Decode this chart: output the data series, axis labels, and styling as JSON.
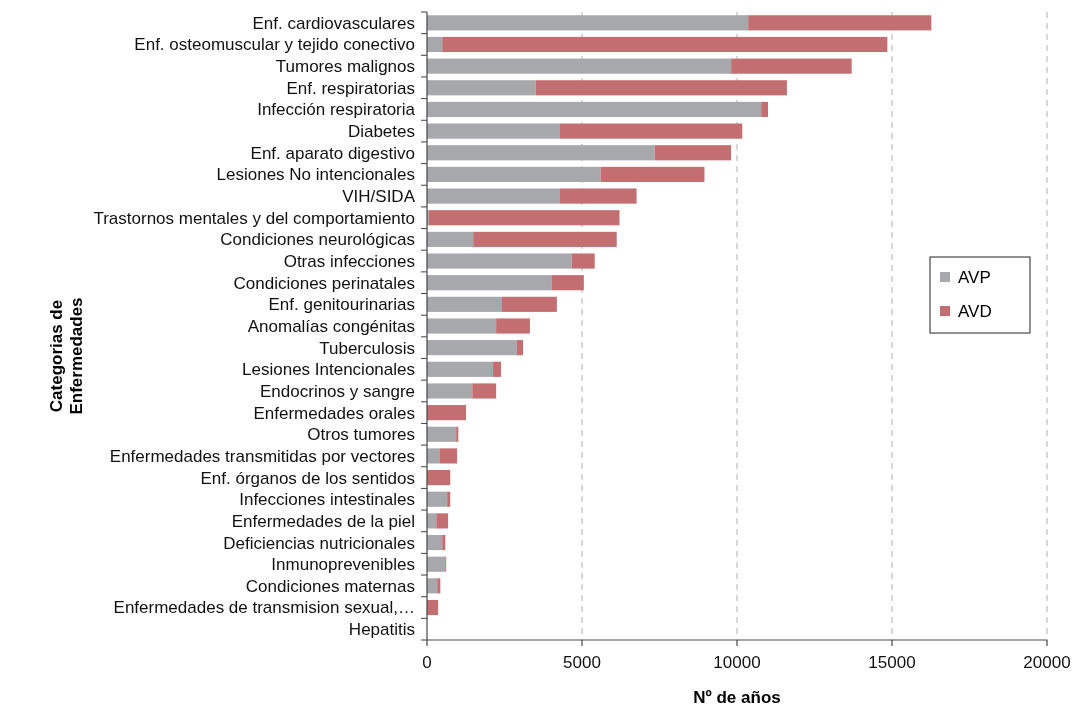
{
  "chart_data": {
    "type": "bar",
    "orientation": "horizontal",
    "stacked": true,
    "xlabel": "Nº de años",
    "ylabel": "Categorias de Enfermedades",
    "categories": [
      "Enf. cardiovasculares",
      "Enf. osteomuscular y tejido conectivo",
      "Tumores malignos",
      "Enf. respiratorias",
      "Infección respiratoria",
      "Diabetes",
      "Enf. aparato digestivo",
      "Lesiones No intencionales",
      "VIH/SIDA",
      "Trastornos mentales y del comportamiento",
      "Condiciones neurológicas",
      "Otras infecciones",
      "Condiciones perinatales",
      "Enf. genitourinarias",
      "Anomalías congénitas",
      "Tuberculosis",
      "Lesiones Intencionales",
      "Endocrinos y sangre",
      "Enfermedades orales",
      "Otros tumores",
      "Enfermedades transmitidas por vectores",
      "Enf. órganos de los sentidos",
      "Infecciones intestinales",
      "Enfermedades de la piel",
      "Deficiencias nutricionales",
      "Inmunoprevenibles",
      "Condiciones maternas",
      "Enfermedades de transmision sexual,…",
      "Hepatitis"
    ],
    "series": [
      {
        "name": "AVP",
        "color": "#a7a8ac",
        "values": [
          10360,
          490,
          9810,
          3510,
          10780,
          4290,
          7340,
          5600,
          4290,
          60,
          1490,
          4670,
          4030,
          2420,
          2230,
          2900,
          2130,
          1460,
          0,
          940,
          400,
          0,
          650,
          300,
          490,
          590,
          330,
          0,
          0
        ]
      },
      {
        "name": "AVD",
        "color": "#c36f72",
        "values": [
          5910,
          14360,
          3890,
          8100,
          220,
          5880,
          2470,
          3350,
          2470,
          6150,
          4630,
          740,
          1030,
          1770,
          1090,
          200,
          260,
          770,
          1260,
          70,
          570,
          750,
          100,
          380,
          100,
          30,
          100,
          360,
          0
        ]
      }
    ],
    "xlim": [
      0,
      20000
    ],
    "xticks": [
      0,
      5000,
      10000,
      15000,
      20000
    ],
    "grid": "x",
    "legend": "right"
  }
}
